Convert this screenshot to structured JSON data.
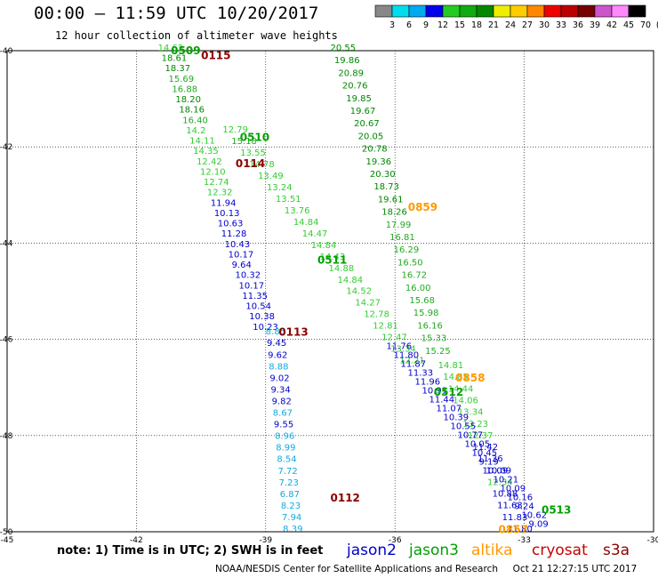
{
  "header": {
    "title": "00:00 — 11:59 UTC 10/20/2017",
    "subtitle": "12 hour collection of altimeter wave heights"
  },
  "note": "note: 1) Time is in UTC; 2) SWH is in feet",
  "satellites": [
    {
      "name": "jason2",
      "color": "#0000cc"
    },
    {
      "name": "jason3",
      "color": "#00a000"
    },
    {
      "name": "altika",
      "color": "#ff9900"
    },
    {
      "name": "cryosat",
      "color": "#cc0000"
    },
    {
      "name": "s3a",
      "color": "#8b0000"
    }
  ],
  "credit": "NOAA/NESDIS Center for Satellite Applications and Research     Oct 21 12:27:15 UTC 2017",
  "colorbar": {
    "labels": [
      "3",
      "6",
      "9",
      "12",
      "15",
      "18",
      "21",
      "24",
      "27",
      "30",
      "33",
      "36",
      "39",
      "42",
      "45",
      "70",
      "(ft)"
    ],
    "colors": [
      "#888888",
      "#00ddee",
      "#00aaee",
      "#0000ee",
      "#22cc22",
      "#11aa11",
      "#008800",
      "#eeee00",
      "#ffcc00",
      "#ff8800",
      "#ee0000",
      "#bb0000",
      "#770000",
      "#cc55cc",
      "#ff88ff",
      "#000000"
    ]
  },
  "chart_data": {
    "type": "scatter",
    "xlim": [
      -45,
      -30
    ],
    "ylim": [
      -50,
      -40
    ],
    "xticks": [
      -45,
      -42,
      -39,
      -36,
      -33,
      -30
    ],
    "yticks": [
      -40,
      -42,
      -44,
      -46,
      -48,
      -50
    ],
    "passes": [
      {
        "label": "0509",
        "sat": "jason3",
        "lon": -41.2,
        "lat": -40.0
      },
      {
        "label": "0115",
        "sat": "s3a",
        "lon": -40.5,
        "lat": -40.1
      },
      {
        "label": "0510",
        "sat": "jason3",
        "lon": -39.6,
        "lat": -41.8
      },
      {
        "label": "0114",
        "sat": "s3a",
        "lon": -39.7,
        "lat": -42.35
      },
      {
        "label": "0859",
        "sat": "altika",
        "lon": -35.7,
        "lat": -43.25
      },
      {
        "label": "0511",
        "sat": "jason3",
        "lon": -37.8,
        "lat": -44.35
      },
      {
        "label": "0113",
        "sat": "s3a",
        "lon": -38.7,
        "lat": -45.85
      },
      {
        "label": "0858",
        "sat": "altika",
        "lon": -34.6,
        "lat": -46.8
      },
      {
        "label": "0512",
        "sat": "jason3",
        "lon": -35.1,
        "lat": -47.1
      },
      {
        "label": "0112",
        "sat": "s3a",
        "lon": -37.5,
        "lat": -49.3
      },
      {
        "label": "0513",
        "sat": "jason3",
        "lon": -32.6,
        "lat": -49.55
      },
      {
        "label": "0857",
        "sat": "altika",
        "lon": -33.6,
        "lat": -49.95
      }
    ],
    "tracks": [
      {
        "name": "s3a pass 0115/0114",
        "sat": "s3a",
        "lon_start": -41.5,
        "lat_start": -40.0,
        "lon_end": -39.3,
        "lat_end": -45.8,
        "swh": [
          "14.62",
          "18.61",
          "18.37",
          "15.69",
          "16.88",
          "18.20",
          "18.16",
          "16.40",
          "14.2",
          "14.11",
          "14.35",
          "12.42",
          "12.10",
          "12.74",
          "12.32",
          "11.94",
          "10.13",
          "10.63",
          "11.28",
          "10.43",
          "10.17",
          "9.64",
          "10.32",
          "10.17",
          "11.35",
          "10.54",
          "10.38",
          "10.23"
        ]
      },
      {
        "name": "jason3 pass 0510",
        "sat": "jason3",
        "lon_start": -40.0,
        "lat_start": -41.7,
        "lon_end": -35.9,
        "lat_end": -46.5,
        "swh": [
          "12.79",
          "15.18",
          "13.55",
          "14.78",
          "13.49",
          "13.24",
          "13.51",
          "13.76",
          "14.84",
          "14.47",
          "14.84",
          "14.43",
          "14.88",
          "14.84",
          "14.52",
          "14.27",
          "12.78",
          "12.81",
          "12.47",
          "13.34",
          "12.21"
        ]
      },
      {
        "name": "s3a pass 0113/0112",
        "sat": "s3a",
        "lon_start": -39.0,
        "lat_start": -45.9,
        "lon_end": -38.6,
        "lat_end": -50.0,
        "swh": [
          "8.85",
          "9.45",
          "9.62",
          "8.88",
          "9.02",
          "9.34",
          "9.82",
          "8.67",
          "9.55",
          "8.96",
          "8.99",
          "8.54",
          "7.72",
          "7.23",
          "6.87",
          "8.23",
          "7.94",
          "8.39"
        ]
      },
      {
        "name": "jason3 pass 0511",
        "sat": "jason3",
        "lon_start": -37.5,
        "lat_start": -40.0,
        "lon_end": -35.3,
        "lat_end": -46.3,
        "swh": [
          "20.55",
          "19.86",
          "20.89",
          "20.76",
          "19.85",
          "19.67",
          "20.67",
          "20.05",
          "20.78",
          "19.36",
          "20.30",
          "18.73",
          "19.61",
          "18.26",
          "17.99",
          "16.81",
          "16.29",
          "16.50",
          "16.72",
          "16.00",
          "15.68",
          "15.98",
          "16.16",
          "15.33",
          "15.25"
        ]
      },
      {
        "name": "altika pass 0858",
        "sat": "altika",
        "lon_start": -35.0,
        "lat_start": -46.6,
        "lon_end": -33.4,
        "lat_end": -50.0,
        "swh": [
          "14.81",
          "14.85",
          "14.44",
          "14.06",
          "13.34",
          "13.23",
          "12.37",
          "11.42",
          "11.36",
          "10.09",
          "12.34",
          "10.88",
          "11.63",
          "11.83",
          "11.80"
        ]
      },
      {
        "name": "jason2 pass",
        "sat": "jason2",
        "lon_start": -36.2,
        "lat_start": -46.2,
        "lon_end": -32.9,
        "lat_end": -49.9,
        "swh": [
          "11.76",
          "11.80",
          "11.87",
          "11.33",
          "11.96",
          "10.91",
          "11.44",
          "11.07",
          "10.39",
          "10.55",
          "10.77",
          "10.05",
          "10.45",
          "9.19",
          "10.09",
          "10.21",
          "10.09",
          "10.16",
          "9.24",
          "10.62",
          "9.09"
        ]
      }
    ]
  }
}
